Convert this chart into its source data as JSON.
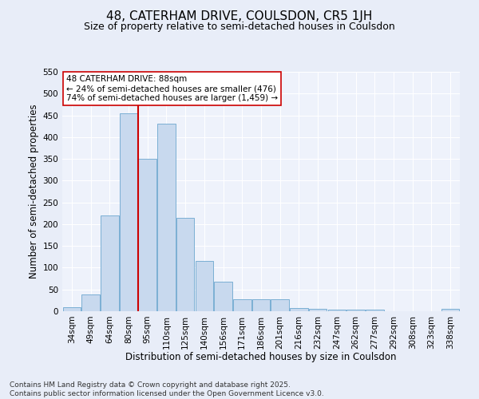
{
  "title1": "48, CATERHAM DRIVE, COULSDON, CR5 1JH",
  "title2": "Size of property relative to semi-detached houses in Coulsdon",
  "xlabel": "Distribution of semi-detached houses by size in Coulsdon",
  "ylabel": "Number of semi-detached properties",
  "categories": [
    "34sqm",
    "49sqm",
    "64sqm",
    "80sqm",
    "95sqm",
    "110sqm",
    "125sqm",
    "140sqm",
    "156sqm",
    "171sqm",
    "186sqm",
    "201sqm",
    "216sqm",
    "232sqm",
    "247sqm",
    "262sqm",
    "277sqm",
    "292sqm",
    "308sqm",
    "323sqm",
    "338sqm"
  ],
  "values": [
    10,
    38,
    220,
    455,
    350,
    430,
    215,
    115,
    68,
    27,
    27,
    27,
    8,
    5,
    3,
    3,
    3,
    0,
    0,
    0,
    5
  ],
  "bar_color": "#c8d9ee",
  "bar_edge_color": "#7bafd4",
  "vline_color": "#cc0000",
  "vline_x_index": 3,
  "annotation_text": "48 CATERHAM DRIVE: 88sqm\n← 24% of semi-detached houses are smaller (476)\n74% of semi-detached houses are larger (1,459) →",
  "annotation_box_facecolor": "#ffffff",
  "annotation_box_edgecolor": "#cc0000",
  "ylim": [
    0,
    550
  ],
  "yticks": [
    0,
    50,
    100,
    150,
    200,
    250,
    300,
    350,
    400,
    450,
    500,
    550
  ],
  "fig_bg_color": "#e8edf8",
  "plot_bg_color": "#eef2fb",
  "grid_color": "#ffffff",
  "footer": "Contains HM Land Registry data © Crown copyright and database right 2025.\nContains public sector information licensed under the Open Government Licence v3.0.",
  "title1_fontsize": 11,
  "title2_fontsize": 9,
  "xlabel_fontsize": 8.5,
  "ylabel_fontsize": 8.5,
  "tick_fontsize": 7.5,
  "annotation_fontsize": 7.5,
  "footer_fontsize": 6.5
}
